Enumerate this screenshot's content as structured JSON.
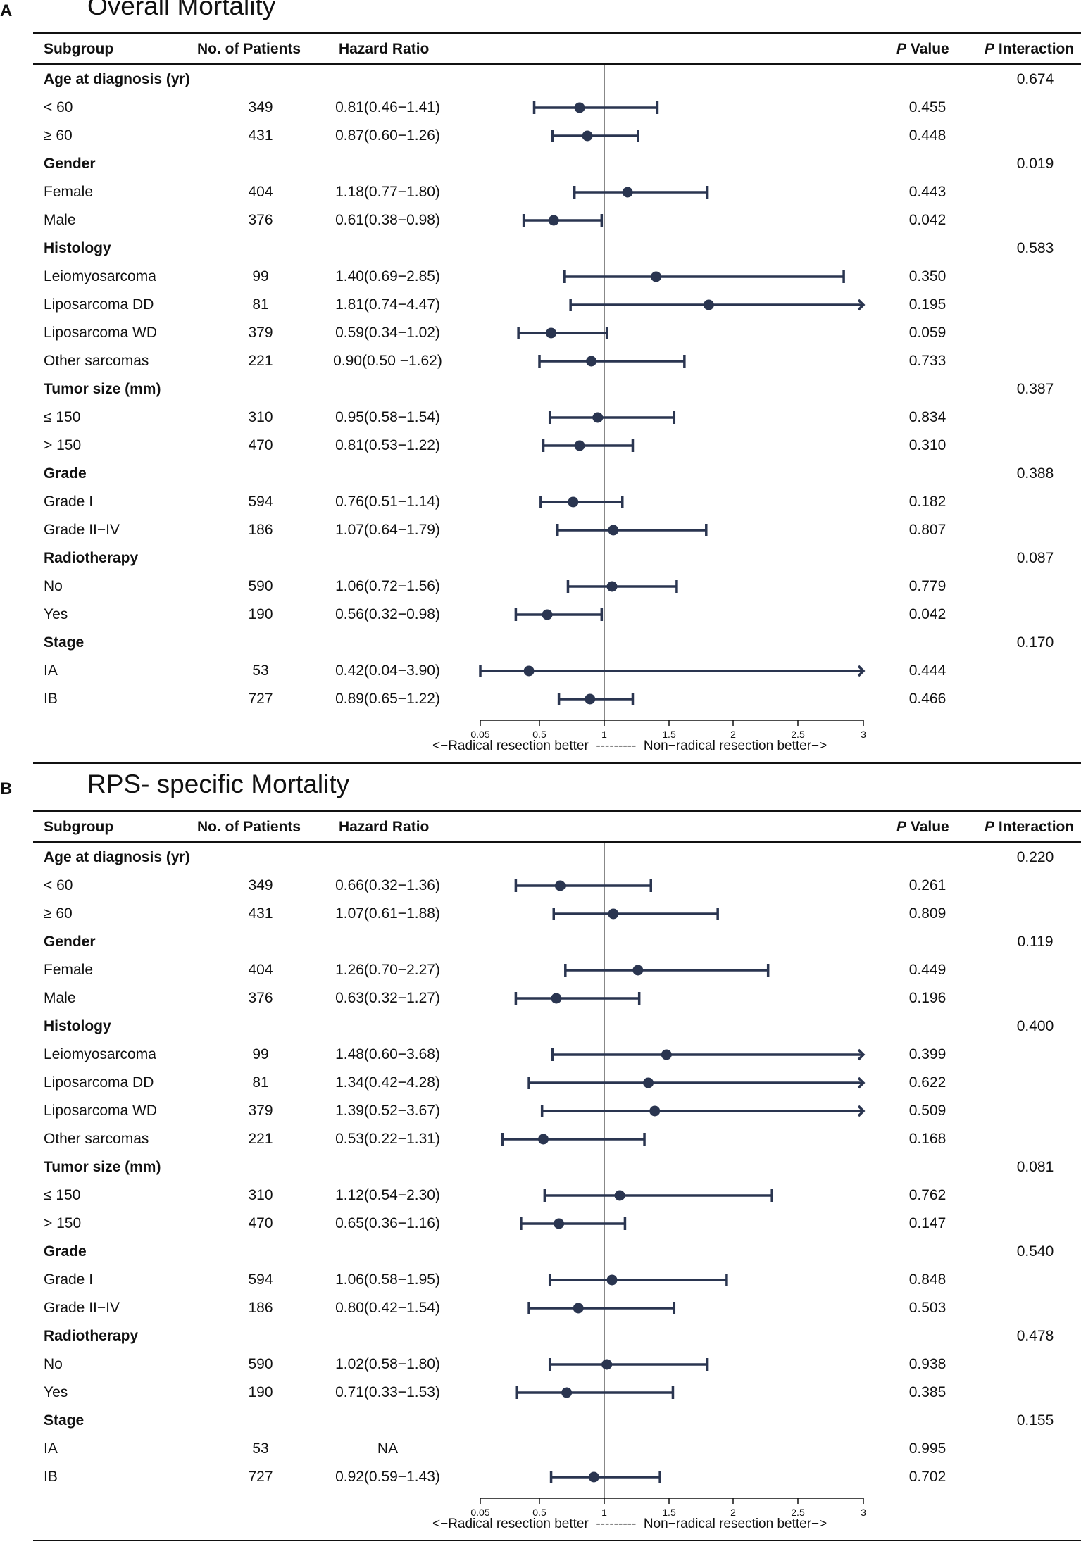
{
  "colors": {
    "series": "#2a3550",
    "ref_line": "#888888",
    "text": "#111111"
  },
  "headers": {
    "subgroup": "Subgroup",
    "n": "No. of Patients",
    "hr": "Hazard Ratio",
    "p_italic": "P",
    "p_rest": " Value",
    "pint_italic": "P",
    "pint_rest": " Interaction"
  },
  "axis_note": {
    "left": "<−Radical resection better",
    "dashes": "---------",
    "right": "Non−radical resection better−>"
  },
  "chart_data": [
    {
      "panel": "A",
      "title": "Overall Mortality",
      "type": "forest",
      "reference_line": 1,
      "xlim": [
        0.05,
        3
      ],
      "xticks": [
        0.05,
        0.5,
        1,
        1.5,
        2,
        2.5,
        3
      ],
      "xtick_labels": [
        "0.05",
        "0.5",
        "1",
        "1.5",
        "2",
        "2.5",
        "3"
      ],
      "rows": [
        {
          "label": "Age at diagnosis (yr)",
          "group": true,
          "pint": "0.674"
        },
        {
          "label": "< 60",
          "n": "349",
          "hr_text": "0.81(0.46−1.41)",
          "hr": 0.81,
          "lo": 0.46,
          "hi": 1.41,
          "p": "0.455"
        },
        {
          "label": "≥ 60",
          "n": "431",
          "hr_text": "0.87(0.60−1.26)",
          "hr": 0.87,
          "lo": 0.6,
          "hi": 1.26,
          "p": "0.448"
        },
        {
          "label": "Gender",
          "group": true,
          "pint": "0.019"
        },
        {
          "label": "Female",
          "n": "404",
          "hr_text": "1.18(0.77−1.80)",
          "hr": 1.18,
          "lo": 0.77,
          "hi": 1.8,
          "p": "0.443"
        },
        {
          "label": "Male",
          "n": "376",
          "hr_text": "0.61(0.38−0.98)",
          "hr": 0.61,
          "lo": 0.38,
          "hi": 0.98,
          "p": "0.042"
        },
        {
          "label": "Histology",
          "group": true,
          "pint": "0.583"
        },
        {
          "label": "Leiomyosarcoma",
          "n": "99",
          "hr_text": "1.40(0.69−2.85)",
          "hr": 1.4,
          "lo": 0.69,
          "hi": 2.85,
          "p": "0.350"
        },
        {
          "label": "Liposarcoma DD",
          "n": "81",
          "hr_text": "1.81(0.74−4.47)",
          "hr": 1.81,
          "lo": 0.74,
          "hi": 4.47,
          "p": "0.195"
        },
        {
          "label": "Liposarcoma WD",
          "n": "379",
          "hr_text": "0.59(0.34−1.02)",
          "hr": 0.59,
          "lo": 0.34,
          "hi": 1.02,
          "p": "0.059"
        },
        {
          "label": "Other sarcomas",
          "n": "221",
          "hr_text": "0.90(0.50 −1.62)",
          "hr": 0.9,
          "lo": 0.5,
          "hi": 1.62,
          "p": "0.733"
        },
        {
          "label": "Tumor size (mm)",
          "group": true,
          "pint": "0.387"
        },
        {
          "label": "≤ 150",
          "n": "310",
          "hr_text": "0.95(0.58−1.54)",
          "hr": 0.95,
          "lo": 0.58,
          "hi": 1.54,
          "p": "0.834"
        },
        {
          "label": "> 150",
          "n": "470",
          "hr_text": "0.81(0.53−1.22)",
          "hr": 0.81,
          "lo": 0.53,
          "hi": 1.22,
          "p": "0.310"
        },
        {
          "label": "Grade",
          "group": true,
          "pint": "0.388"
        },
        {
          "label": "Grade I",
          "n": "594",
          "hr_text": "0.76(0.51−1.14)",
          "hr": 0.76,
          "lo": 0.51,
          "hi": 1.14,
          "p": "0.182"
        },
        {
          "label": "Grade II−IV",
          "n": "186",
          "hr_text": "1.07(0.64−1.79)",
          "hr": 1.07,
          "lo": 0.64,
          "hi": 1.79,
          "p": "0.807"
        },
        {
          "label": "Radiotherapy",
          "group": true,
          "pint": "0.087"
        },
        {
          "label": "No",
          "n": "590",
          "hr_text": "1.06(0.72−1.56)",
          "hr": 1.06,
          "lo": 0.72,
          "hi": 1.56,
          "p": "0.779"
        },
        {
          "label": "Yes",
          "n": "190",
          "hr_text": "0.56(0.32−0.98)",
          "hr": 0.56,
          "lo": 0.32,
          "hi": 0.98,
          "p": "0.042"
        },
        {
          "label": "Stage",
          "group": true,
          "pint": "0.170"
        },
        {
          "label": "IA",
          "n": "53",
          "hr_text": "0.42(0.04−3.90)",
          "hr": 0.42,
          "lo": 0.04,
          "hi": 3.9,
          "p": "0.444"
        },
        {
          "label": "IB",
          "n": "727",
          "hr_text": "0.89(0.65−1.22)",
          "hr": 0.89,
          "lo": 0.65,
          "hi": 1.22,
          "p": "0.466"
        }
      ]
    },
    {
      "panel": "B",
      "title": "RPS- specific Mortality",
      "type": "forest",
      "reference_line": 1,
      "xlim": [
        0.05,
        3
      ],
      "xticks": [
        0.05,
        0.5,
        1,
        1.5,
        2,
        2.5,
        3
      ],
      "xtick_labels": [
        "0.05",
        "0.5",
        "1",
        "1.5",
        "2",
        "2.5",
        "3"
      ],
      "rows": [
        {
          "label": "Age at diagnosis (yr)",
          "group": true,
          "pint": "0.220"
        },
        {
          "label": "< 60",
          "n": "349",
          "hr_text": "0.66(0.32−1.36)",
          "hr": 0.66,
          "lo": 0.32,
          "hi": 1.36,
          "p": "0.261"
        },
        {
          "label": "≥ 60",
          "n": "431",
          "hr_text": "1.07(0.61−1.88)",
          "hr": 1.07,
          "lo": 0.61,
          "hi": 1.88,
          "p": "0.809"
        },
        {
          "label": "Gender",
          "group": true,
          "pint": "0.119"
        },
        {
          "label": "Female",
          "n": "404",
          "hr_text": "1.26(0.70−2.27)",
          "hr": 1.26,
          "lo": 0.7,
          "hi": 2.27,
          "p": "0.449"
        },
        {
          "label": "Male",
          "n": "376",
          "hr_text": "0.63(0.32−1.27)",
          "hr": 0.63,
          "lo": 0.32,
          "hi": 1.27,
          "p": "0.196"
        },
        {
          "label": "Histology",
          "group": true,
          "pint": "0.400"
        },
        {
          "label": "Leiomyosarcoma",
          "n": "99",
          "hr_text": "1.48(0.60−3.68)",
          "hr": 1.48,
          "lo": 0.6,
          "hi": 3.68,
          "p": "0.399"
        },
        {
          "label": "Liposarcoma DD",
          "n": "81",
          "hr_text": "1.34(0.42−4.28)",
          "hr": 1.34,
          "lo": 0.42,
          "hi": 4.28,
          "p": "0.622"
        },
        {
          "label": "Liposarcoma WD",
          "n": "379",
          "hr_text": "1.39(0.52−3.67)",
          "hr": 1.39,
          "lo": 0.52,
          "hi": 3.67,
          "p": "0.509"
        },
        {
          "label": "Other sarcomas",
          "n": "221",
          "hr_text": "0.53(0.22−1.31)",
          "hr": 0.53,
          "lo": 0.22,
          "hi": 1.31,
          "p": "0.168"
        },
        {
          "label": "Tumor size (mm)",
          "group": true,
          "pint": "0.081"
        },
        {
          "label": "≤ 150",
          "n": "310",
          "hr_text": "1.12(0.54−2.30)",
          "hr": 1.12,
          "lo": 0.54,
          "hi": 2.3,
          "p": "0.762"
        },
        {
          "label": "> 150",
          "n": "470",
          "hr_text": "0.65(0.36−1.16)",
          "hr": 0.65,
          "lo": 0.36,
          "hi": 1.16,
          "p": "0.147"
        },
        {
          "label": "Grade",
          "group": true,
          "pint": "0.540"
        },
        {
          "label": "Grade I",
          "n": "594",
          "hr_text": "1.06(0.58−1.95)",
          "hr": 1.06,
          "lo": 0.58,
          "hi": 1.95,
          "p": "0.848"
        },
        {
          "label": "Grade II−IV",
          "n": "186",
          "hr_text": "0.80(0.42−1.54)",
          "hr": 0.8,
          "lo": 0.42,
          "hi": 1.54,
          "p": "0.503"
        },
        {
          "label": "Radiotherapy",
          "group": true,
          "pint": "0.478"
        },
        {
          "label": "No",
          "n": "590",
          "hr_text": "1.02(0.58−1.80)",
          "hr": 1.02,
          "lo": 0.58,
          "hi": 1.8,
          "p": "0.938"
        },
        {
          "label": "Yes",
          "n": "190",
          "hr_text": "0.71(0.33−1.53)",
          "hr": 0.71,
          "lo": 0.33,
          "hi": 1.53,
          "p": "0.385"
        },
        {
          "label": "Stage",
          "group": true,
          "pint": "0.155"
        },
        {
          "label": "IA",
          "n": "53",
          "hr_text": "NA",
          "hr": null,
          "lo": null,
          "hi": null,
          "p": "0.995"
        },
        {
          "label": "IB",
          "n": "727",
          "hr_text": "0.92(0.59−1.43)",
          "hr": 0.92,
          "lo": 0.59,
          "hi": 1.43,
          "p": "0.702"
        }
      ]
    }
  ]
}
